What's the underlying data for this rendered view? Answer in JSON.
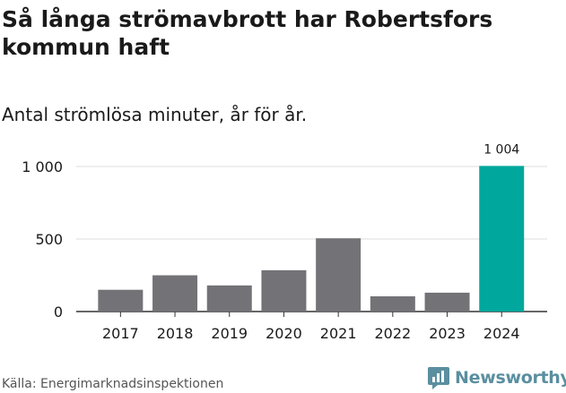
{
  "header": {
    "title": "Så långa strömavbrott har Robertsfors kommun haft",
    "subtitle": "Antal strömlösa minuter, år för år."
  },
  "footer": {
    "source": "Källa: Energimarknadsinspektionen",
    "brand": "Newsworthy"
  },
  "colors": {
    "bar": "#737276",
    "highlight": "#00a79d",
    "brand": "#5a8fa0"
  },
  "chart_data": {
    "type": "bar",
    "categories": [
      "2017",
      "2018",
      "2019",
      "2020",
      "2021",
      "2022",
      "2023",
      "2024"
    ],
    "values": [
      150,
      250,
      180,
      285,
      505,
      105,
      130,
      1004
    ],
    "highlight_index": 7,
    "data_labels": {
      "2024": "1 004"
    },
    "yticks": [
      0,
      500,
      1000
    ],
    "ytick_labels": [
      "0",
      "500",
      "1 000"
    ],
    "ylim": [
      0,
      1000
    ],
    "grid": true,
    "legend": "none"
  }
}
